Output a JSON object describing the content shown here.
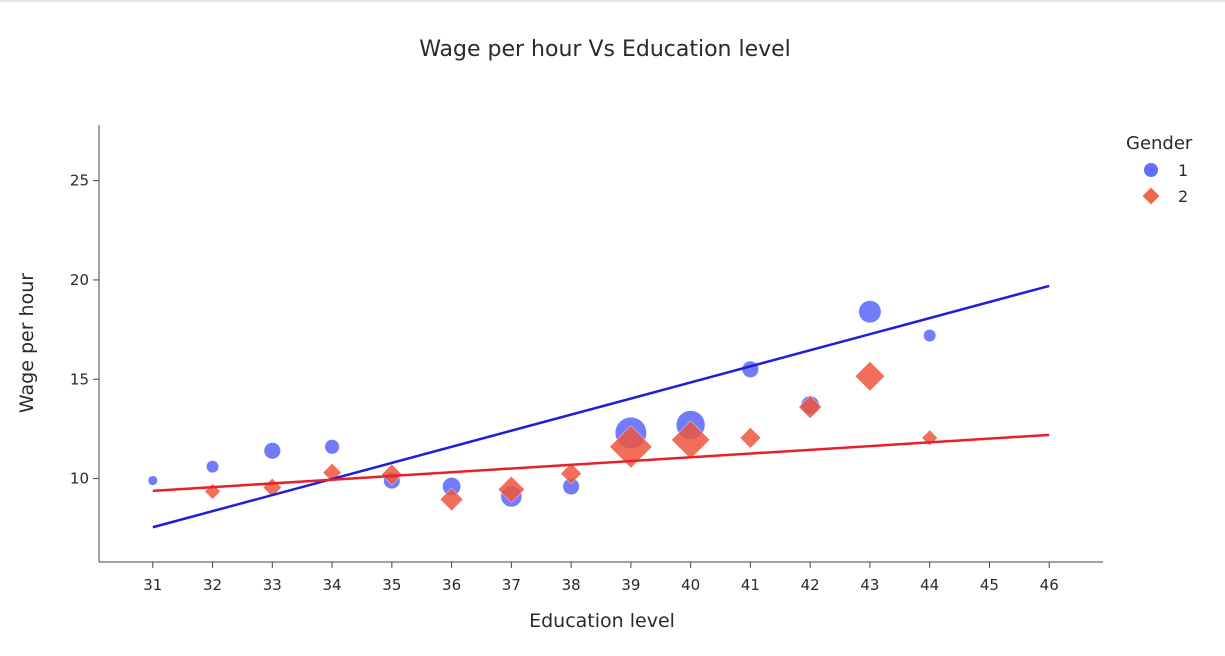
{
  "chart_data": {
    "type": "scatter",
    "title": "Wage per hour Vs Education level",
    "xlabel": "Education level",
    "ylabel": "Wage per hour",
    "xlim": [
      30.1,
      46.9
    ],
    "ylim": [
      5.8,
      27.8
    ],
    "x_ticks": [
      31,
      32,
      33,
      34,
      35,
      36,
      37,
      38,
      39,
      40,
      41,
      42,
      43,
      44,
      45,
      46
    ],
    "y_ticks": [
      10,
      15,
      20,
      25
    ],
    "grid": false,
    "legend": {
      "title": "Gender",
      "placement": "top-right"
    },
    "series": [
      {
        "name": "1",
        "color": "#636efa",
        "marker": "circle",
        "points": [
          {
            "x": 31,
            "y": 9.9,
            "size": 1
          },
          {
            "x": 32,
            "y": 10.6,
            "size": 2
          },
          {
            "x": 33,
            "y": 11.4,
            "size": 4
          },
          {
            "x": 34,
            "y": 11.6,
            "size": 3
          },
          {
            "x": 35,
            "y": 9.9,
            "size": 4
          },
          {
            "x": 36,
            "y": 9.6,
            "size": 5
          },
          {
            "x": 37,
            "y": 9.1,
            "size": 7
          },
          {
            "x": 38,
            "y": 9.6,
            "size": 4
          },
          {
            "x": 39,
            "y": 12.3,
            "size": 17
          },
          {
            "x": 40,
            "y": 12.7,
            "size": 14
          },
          {
            "x": 41,
            "y": 15.5,
            "size": 4
          },
          {
            "x": 42,
            "y": 13.7,
            "size": 5
          },
          {
            "x": 43,
            "y": 18.4,
            "size": 8
          },
          {
            "x": 44,
            "y": 17.2,
            "size": 2
          }
        ],
        "trendline": [
          [
            31,
            7.55
          ],
          [
            46,
            19.7
          ]
        ]
      },
      {
        "name": "2",
        "color": "#ef553b",
        "marker": "diamond",
        "points": [
          {
            "x": 32,
            "y": 9.35,
            "size": 2
          },
          {
            "x": 33,
            "y": 9.55,
            "size": 3
          },
          {
            "x": 34,
            "y": 10.3,
            "size": 3
          },
          {
            "x": 35,
            "y": 10.2,
            "size": 4
          },
          {
            "x": 36,
            "y": 8.95,
            "size": 5
          },
          {
            "x": 37,
            "y": 9.45,
            "size": 7
          },
          {
            "x": 38,
            "y": 10.25,
            "size": 4
          },
          {
            "x": 39,
            "y": 11.6,
            "size": 20
          },
          {
            "x": 40,
            "y": 11.95,
            "size": 16
          },
          {
            "x": 41,
            "y": 12.05,
            "size": 4
          },
          {
            "x": 42,
            "y": 13.6,
            "size": 5
          },
          {
            "x": 43,
            "y": 15.15,
            "size": 9
          },
          {
            "x": 44,
            "y": 12.05,
            "size": 2
          }
        ],
        "trendline": [
          [
            31,
            9.38
          ],
          [
            46,
            12.2
          ]
        ]
      }
    ]
  }
}
